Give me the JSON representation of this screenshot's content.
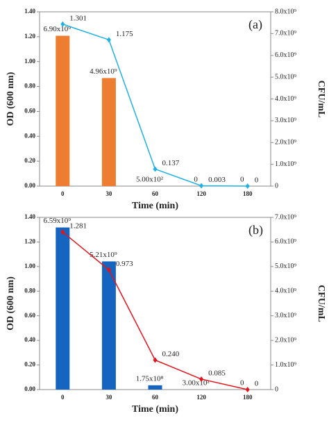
{
  "chart_data": [
    {
      "type": "bar",
      "annotation": "(a)",
      "xlabel": "Time (min)",
      "ylabel": "OD (600 nm)",
      "y2label": "CFU/mL",
      "categories": [
        "0",
        "30",
        "60",
        "120",
        "180"
      ],
      "ylim": [
        0,
        1.4
      ],
      "yticks": [
        {
          "value": 0,
          "label": "0.00"
        },
        {
          "value": 0.2,
          "label": "0.20"
        },
        {
          "value": 0.4,
          "label": "0.40"
        },
        {
          "value": 0.6,
          "label": "0.60"
        },
        {
          "value": 0.8,
          "label": "0.80"
        },
        {
          "value": 1.0,
          "label": "1.00"
        },
        {
          "value": 1.2,
          "label": "1.20"
        },
        {
          "value": 1.4,
          "label": "1.40"
        }
      ],
      "y2lim": [
        0,
        8000000000
      ],
      "y2ticks": [
        0,
        {
          "value": 1000000000,
          "label": "1.0x10⁹"
        },
        {
          "value": 2000000000,
          "label": "2.0x10⁹"
        },
        {
          "value": 3000000000,
          "label": "3.0x10⁹"
        },
        {
          "value": 4000000000,
          "label": "4.0x10⁹"
        },
        {
          "value": 5000000000,
          "label": "5.0x10⁹"
        },
        {
          "value": 6000000000,
          "label": "6.0x10⁹"
        },
        {
          "value": 7000000000,
          "label": "7.0x10⁹"
        },
        {
          "value": 8000000000,
          "label": "8.0x10⁹"
        }
      ],
      "series": [
        {
          "type": "bar",
          "axis": "y2",
          "color": "#ed7d31",
          "values": [
            6900000000,
            4960000000,
            500,
            0,
            0
          ],
          "value_labels": [
            "6.90x10⁹",
            "4.96x10⁹",
            "5.00x10²",
            "0",
            "0"
          ]
        },
        {
          "type": "line",
          "color": "#1eb1e4",
          "values": [
            1.301,
            1.175,
            0.137,
            0.003,
            0
          ],
          "value_labels": [
            "1.301",
            "1.175",
            "0.137",
            "0.003",
            "0"
          ]
        }
      ]
    },
    {
      "type": "bar",
      "annotation": "(b)",
      "xlabel": "Time (min)",
      "ylabel": "OD (600 nm)",
      "y2label": "CFU/mL",
      "categories": [
        "0",
        "30",
        "60",
        "120",
        "180"
      ],
      "ylim": [
        0,
        1.4
      ],
      "yticks": [
        {
          "value": 0,
          "label": "0.00"
        },
        {
          "value": 0.2,
          "label": "0.20"
        },
        {
          "value": 0.4,
          "label": "0.40"
        },
        {
          "value": 0.6,
          "label": "0.60"
        },
        {
          "value": 0.8,
          "label": "0.80"
        },
        {
          "value": 1.0,
          "label": "1.00"
        },
        {
          "value": 1.2,
          "label": "1.20"
        },
        {
          "value": 1.4,
          "label": "1.40"
        }
      ],
      "y2lim": [
        0,
        7000000000
      ],
      "y2ticks": [
        0,
        {
          "value": 1000000000,
          "label": "1.0x10⁹"
        },
        {
          "value": 2000000000,
          "label": "2.0x10⁹"
        },
        {
          "value": 3000000000,
          "label": "3.0x10⁹"
        },
        {
          "value": 4000000000,
          "label": "4.0x10⁹"
        },
        {
          "value": 5000000000,
          "label": "5.0x10⁹"
        },
        {
          "value": 6000000000,
          "label": "6.0x10⁹"
        },
        {
          "value": 7000000000,
          "label": "7.0x10⁹"
        }
      ],
      "series": [
        {
          "type": "bar",
          "axis": "y2",
          "color": "#1565c0",
          "values": [
            6590000000,
            5210000000,
            175000000,
            300,
            0
          ],
          "value_labels": [
            "6.59x10⁹",
            "5.21x10⁹",
            "1.75x10⁸",
            "3.00x10²",
            "0"
          ]
        },
        {
          "type": "line",
          "color": "#e3141b",
          "values": [
            1.281,
            0.973,
            0.24,
            0.085,
            0
          ],
          "value_labels": [
            "1.281",
            "0.973",
            "0.240",
            "0.085",
            "0"
          ]
        }
      ]
    }
  ]
}
